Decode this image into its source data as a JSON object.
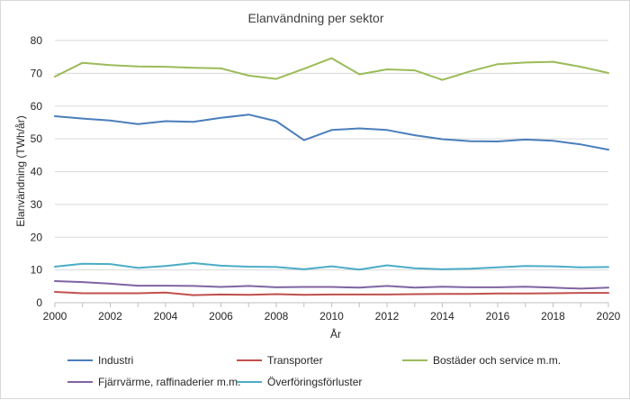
{
  "chart_data": {
    "type": "line",
    "title": "Elanvändning per sektor",
    "xlabel": "År",
    "ylabel": "Elanvändning (TWh/år)",
    "ylim": [
      0,
      80
    ],
    "yticks": [
      0,
      10,
      20,
      30,
      40,
      50,
      60,
      70,
      80
    ],
    "xlim": [
      2000,
      2020
    ],
    "xticks": [
      2000,
      2002,
      2004,
      2006,
      2008,
      2010,
      2012,
      2014,
      2016,
      2018,
      2020
    ],
    "grid": true,
    "legend_position": "bottom",
    "x": [
      2000,
      2001,
      2002,
      2003,
      2004,
      2005,
      2006,
      2007,
      2008,
      2009,
      2010,
      2011,
      2012,
      2013,
      2014,
      2015,
      2016,
      2017,
      2018,
      2019,
      2020
    ],
    "series": [
      {
        "name": "Industri",
        "color": "#4a7ebb",
        "values": [
          56.9,
          56.2,
          55.6,
          54.5,
          55.4,
          55.2,
          56.4,
          57.4,
          55.4,
          49.6,
          52.7,
          53.2,
          52.7,
          51.1,
          49.9,
          49.3,
          49.2,
          49.8,
          49.4,
          48.3,
          46.7
        ]
      },
      {
        "name": "Transporter",
        "color": "#c0504d",
        "values": [
          3.3,
          2.9,
          2.9,
          2.9,
          3.1,
          2.3,
          2.5,
          2.4,
          2.6,
          2.4,
          2.5,
          2.5,
          2.5,
          2.6,
          2.7,
          2.7,
          2.8,
          2.8,
          2.9,
          3.0,
          3.0
        ]
      },
      {
        "name": "Bostäder och service m.m.",
        "color": "#9bbb59",
        "values": [
          69.0,
          73.2,
          72.5,
          72.1,
          72.0,
          71.7,
          71.5,
          69.3,
          68.3,
          71.4,
          74.6,
          69.7,
          71.2,
          70.9,
          68.0,
          70.6,
          72.8,
          73.3,
          73.5,
          72.0,
          70.1
        ]
      },
      {
        "name": "Fjärrvärme, raffinaderier m.m.",
        "color": "#8064a2",
        "values": [
          6.6,
          6.3,
          5.8,
          5.2,
          5.2,
          5.1,
          4.8,
          5.1,
          4.7,
          4.8,
          4.8,
          4.6,
          5.1,
          4.6,
          4.9,
          4.7,
          4.7,
          4.9,
          4.6,
          4.3,
          4.6
        ]
      },
      {
        "name": "Överföringsförluster",
        "color": "#4bacc6",
        "values": [
          11.0,
          11.9,
          11.8,
          10.6,
          11.2,
          12.1,
          11.3,
          11.0,
          10.9,
          10.2,
          11.1,
          10.1,
          11.4,
          10.5,
          10.2,
          10.4,
          10.8,
          11.2,
          11.1,
          10.8,
          10.9
        ]
      }
    ]
  }
}
